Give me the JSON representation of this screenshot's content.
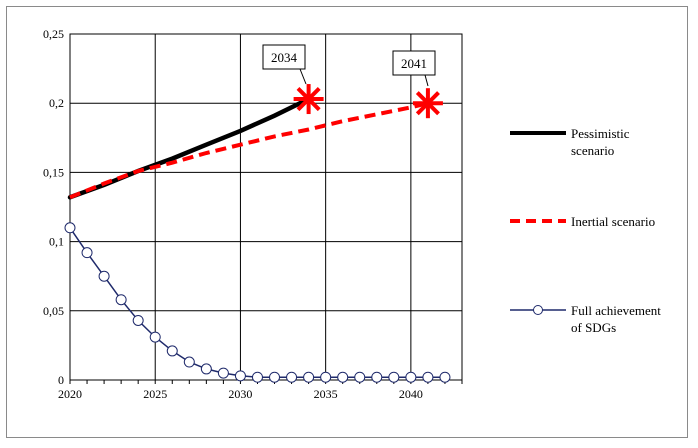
{
  "chart_data": {
    "type": "line",
    "xlim": [
      2020,
      2043
    ],
    "ylim": [
      0,
      0.25
    ],
    "x_ticks": [
      2020,
      2025,
      2030,
      2035,
      2040
    ],
    "y_ticks": [
      0,
      0.05,
      0.1,
      0.15,
      0.2,
      0.25
    ],
    "x_tick_labels": [
      "2020",
      "2025",
      "2030",
      "2035",
      "2040"
    ],
    "y_tick_labels": [
      "0",
      "0,05",
      "0,1",
      "0,15",
      "0,2",
      "0,25"
    ],
    "grid": true,
    "legend_position": "right",
    "series": [
      {
        "name": "Pessimistic scenario",
        "color": "#000000",
        "style": "solid",
        "x": [
          2020,
          2022,
          2024,
          2026,
          2028,
          2030,
          2032,
          2034
        ],
        "y": [
          0.132,
          0.141,
          0.151,
          0.16,
          0.17,
          0.18,
          0.191,
          0.203
        ]
      },
      {
        "name": "Inertial scenario",
        "color": "#ff0000",
        "style": "dashed",
        "x": [
          2020,
          2022,
          2024,
          2026,
          2028,
          2030,
          2032,
          2034,
          2036,
          2038,
          2040,
          2041
        ],
        "y": [
          0.132,
          0.142,
          0.151,
          0.157,
          0.164,
          0.17,
          0.176,
          0.181,
          0.187,
          0.192,
          0.197,
          0.2
        ]
      },
      {
        "name": "Full achievement of SDGs",
        "color": "#1f2a6b",
        "style": "solid-markers",
        "x": [
          2020,
          2021,
          2022,
          2023,
          2024,
          2025,
          2026,
          2027,
          2028,
          2029,
          2030,
          2031,
          2032,
          2033,
          2034,
          2035,
          2036,
          2037,
          2038,
          2039,
          2040,
          2041,
          2042
        ],
        "y": [
          0.11,
          0.092,
          0.075,
          0.058,
          0.043,
          0.031,
          0.021,
          0.013,
          0.008,
          0.005,
          0.003,
          0.002,
          0.002,
          0.002,
          0.002,
          0.002,
          0.002,
          0.002,
          0.002,
          0.002,
          0.002,
          0.002,
          0.002
        ]
      }
    ],
    "annotations": [
      {
        "label": "2034",
        "x": 2034,
        "y": 0.203
      },
      {
        "label": "2041",
        "x": 2041,
        "y": 0.2
      }
    ],
    "legend": {
      "pessimistic": [
        "Pessimistic",
        "scenario"
      ],
      "inertial": [
        "Inertial scenario"
      ],
      "sdg": [
        "Full achievement",
        "of SDGs"
      ]
    },
    "marker_color": "#ff0000"
  }
}
